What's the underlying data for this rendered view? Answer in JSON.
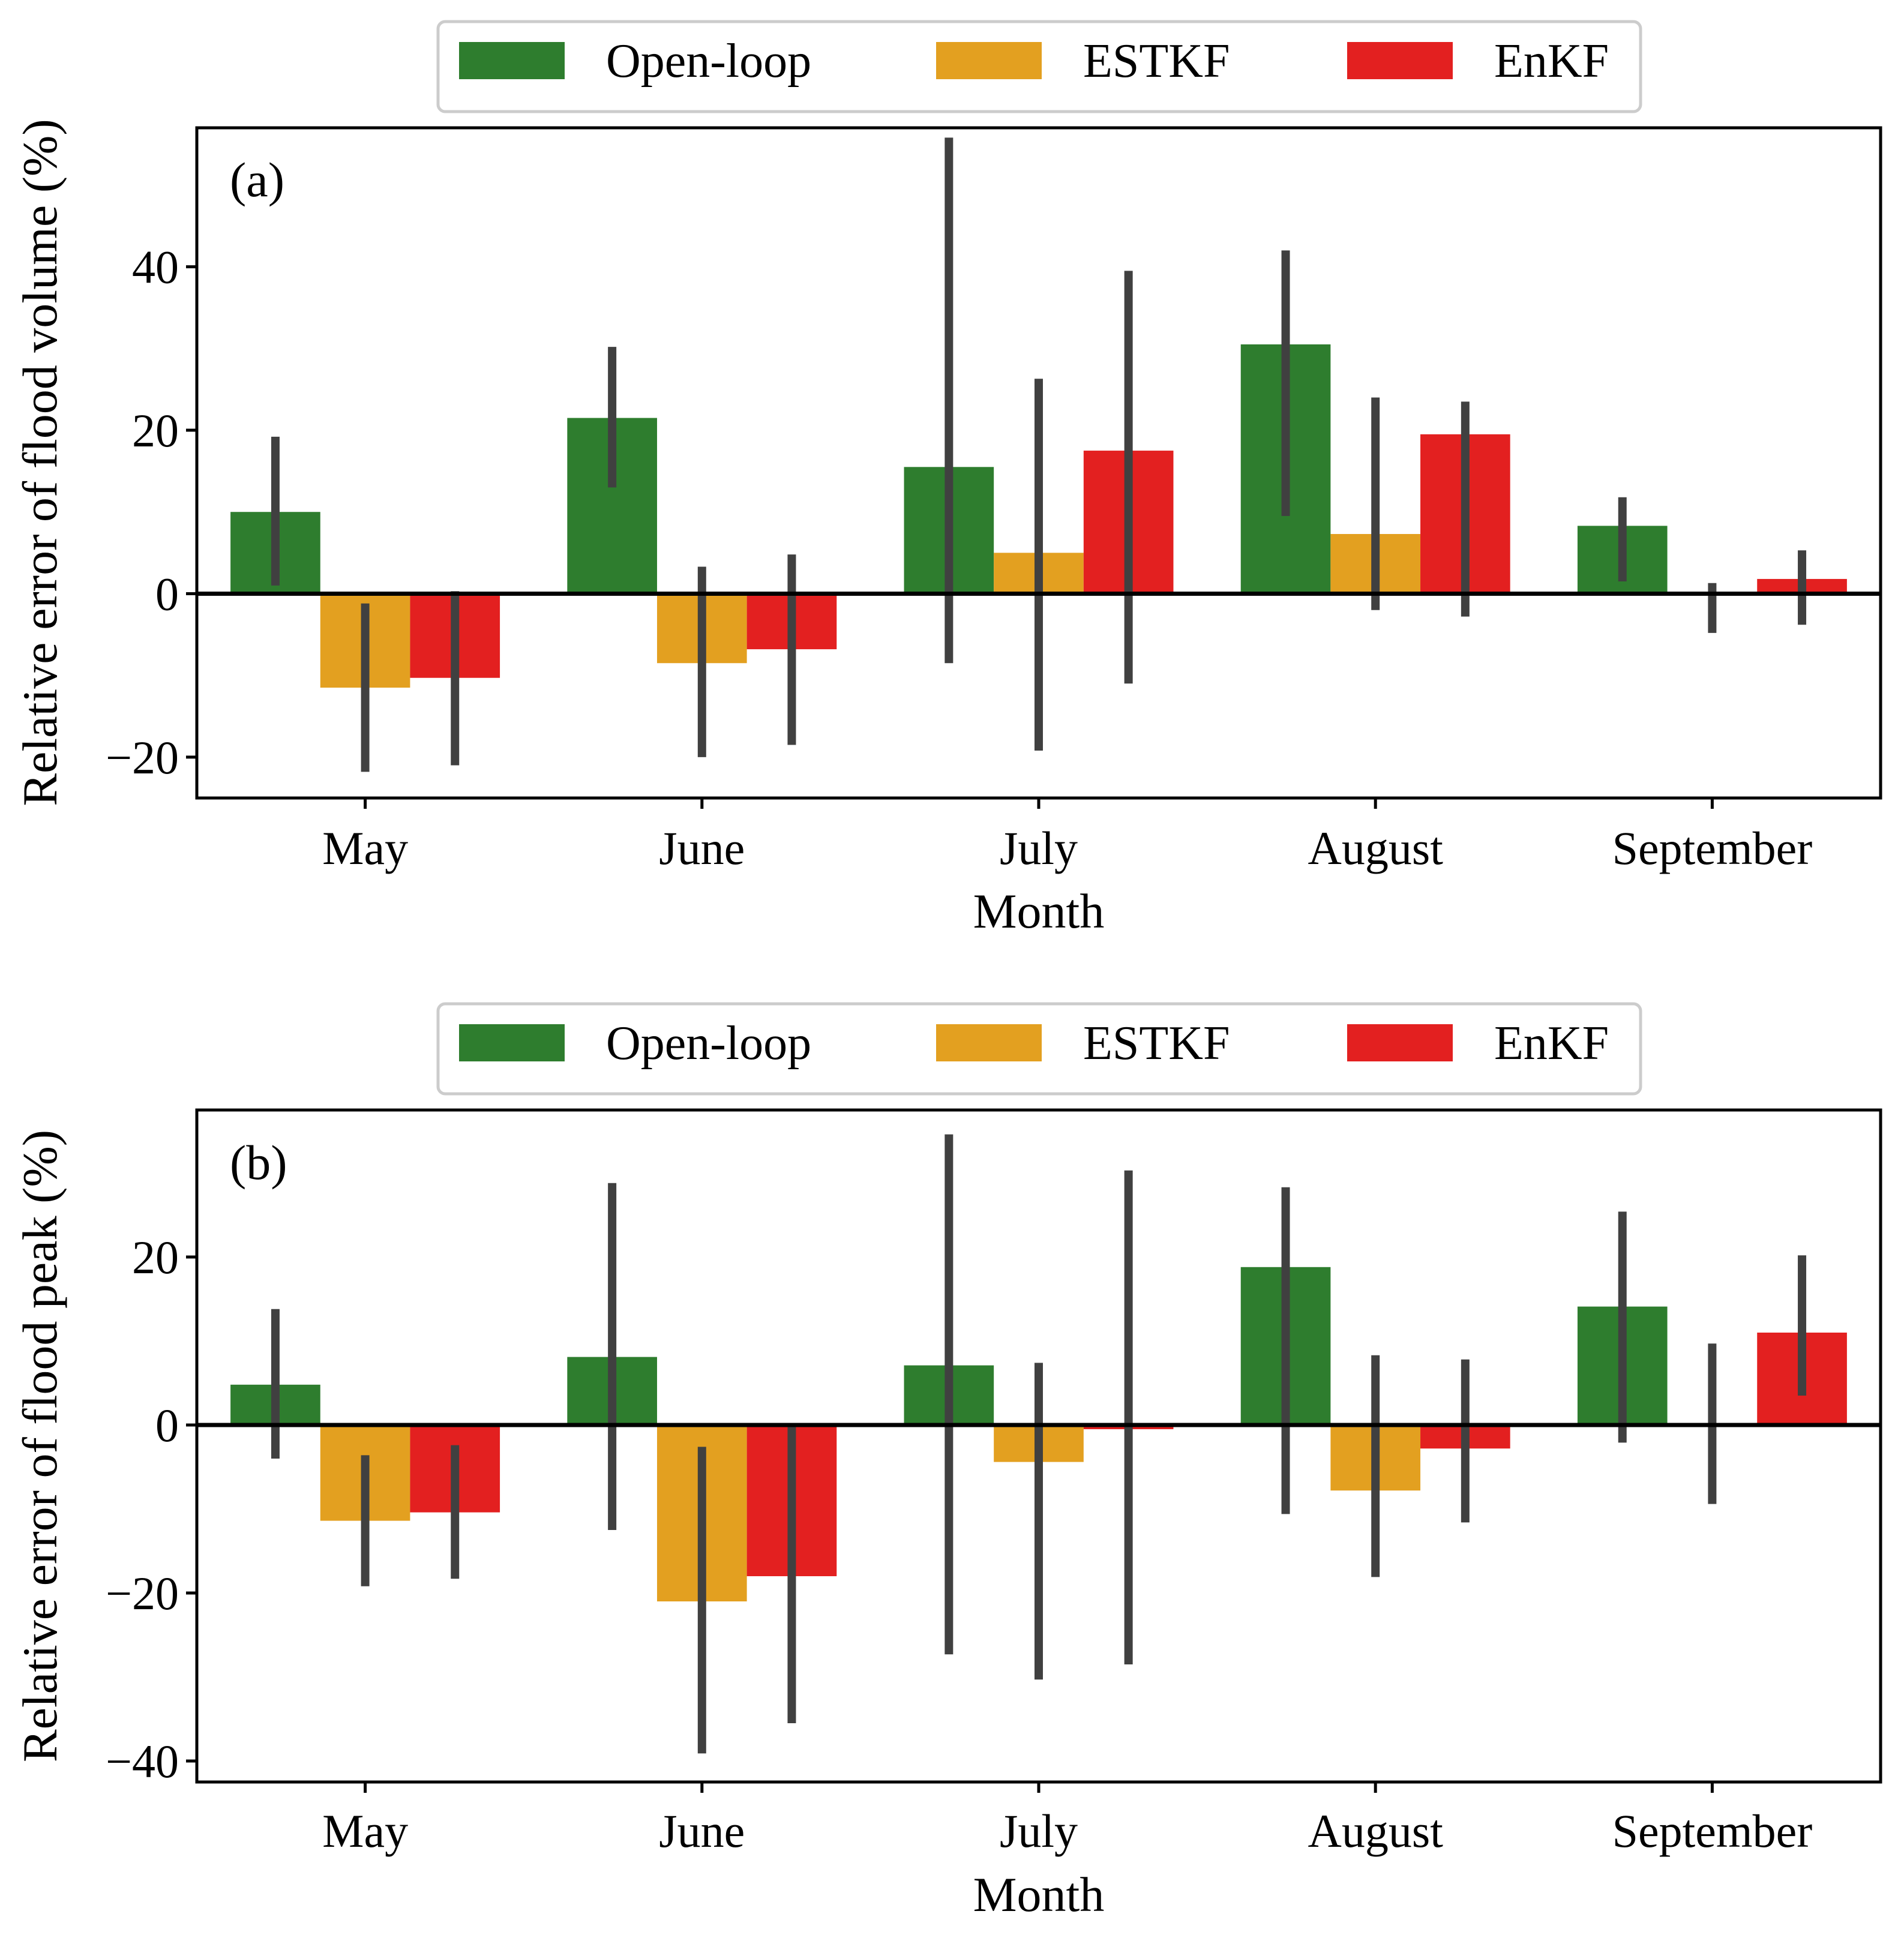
{
  "chart_data": [
    {
      "type": "bar",
      "panel_label": "(a)",
      "title": "",
      "xlabel": "Month",
      "ylabel": "Relative error of flood volume (%)",
      "categories": [
        "May",
        "June",
        "July",
        "August",
        "September"
      ],
      "ylim": [
        -25,
        57
      ],
      "yticks": [
        -20,
        0,
        20,
        40
      ],
      "ytick_labels": [
        "−20",
        "0",
        "20",
        "40"
      ],
      "grid": false,
      "legend_position": "top-center",
      "series": [
        {
          "name": "Open-loop",
          "color": "#2e7d2e",
          "values": [
            10,
            21.5,
            15.5,
            30.5,
            8.3
          ],
          "error_low": [
            1,
            13,
            -8.5,
            9.5,
            1.5
          ],
          "error_high": [
            19.2,
            30.2,
            55.8,
            42,
            11.8
          ]
        },
        {
          "name": "ESTKF",
          "color": "#e3a020",
          "values": [
            -11.5,
            -8.5,
            5,
            7.3,
            0
          ],
          "error_low": [
            -21.8,
            -20,
            -19.2,
            -2,
            -4.8
          ],
          "error_high": [
            -1.2,
            3.3,
            26.3,
            24,
            1.3
          ]
        },
        {
          "name": "EnKF",
          "color": "#e32020",
          "values": [
            -10.3,
            -6.8,
            17.5,
            19.5,
            1.8
          ],
          "error_low": [
            -21,
            -18.5,
            -11,
            -2.8,
            -3.8
          ],
          "error_high": [
            0.3,
            4.8,
            39.5,
            23.5,
            5.3
          ]
        }
      ]
    },
    {
      "type": "bar",
      "panel_label": "(b)",
      "title": "",
      "xlabel": "Month",
      "ylabel": "Relative error of flood peak (%)",
      "categories": [
        "May",
        "June",
        "July",
        "August",
        "September"
      ],
      "ylim": [
        -42.5,
        37.5
      ],
      "yticks": [
        -40,
        -20,
        0,
        20
      ],
      "ytick_labels": [
        "−40",
        "−20",
        "0",
        "20"
      ],
      "grid": false,
      "legend_position": "top-center",
      "series": [
        {
          "name": "Open-loop",
          "color": "#2e7d2e",
          "values": [
            4.8,
            8.1,
            7.1,
            18.8,
            14.1
          ],
          "error_low": [
            -4,
            -12.5,
            -27.3,
            -10.6,
            -2.1
          ],
          "error_high": [
            13.8,
            28.8,
            34.6,
            28.3,
            25.4
          ]
        },
        {
          "name": "ESTKF",
          "color": "#e3a020",
          "values": [
            -11.4,
            -21,
            -4.4,
            -7.8,
            0
          ],
          "error_low": [
            -19.2,
            -39.1,
            -30.3,
            -18.1,
            -9.4
          ],
          "error_high": [
            -3.6,
            -2.6,
            7.4,
            8.3,
            9.7
          ]
        },
        {
          "name": "EnKF",
          "color": "#e32020",
          "values": [
            -10.4,
            -18,
            -0.5,
            -2.8,
            11
          ],
          "error_low": [
            -18.3,
            -35.5,
            -28.5,
            -11.6,
            3.5
          ],
          "error_high": [
            -2.4,
            0,
            30.3,
            7.8,
            20.2
          ]
        }
      ]
    }
  ]
}
